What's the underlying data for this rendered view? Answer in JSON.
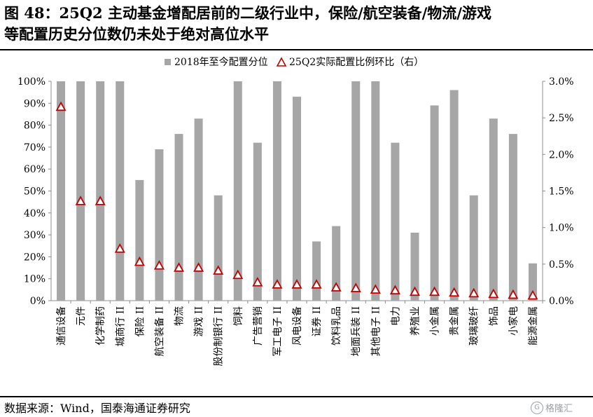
{
  "title": {
    "line1": "图 48：25Q2 主动基金增配居前的二级行业中，保险/航空装备/物流/游戏",
    "line2": "等配置历史分位数仍未处于绝对高位水平"
  },
  "source": "数据来源：Wind，国泰海通证券研究",
  "watermark": "格隆汇",
  "colors": {
    "bar": "#a6a6a6",
    "marker_stroke": "#c00000",
    "marker_fill": "#ffffff",
    "axis": "#8c8c8c"
  },
  "chart_data": {
    "type": "bar",
    "categories": [
      "通信设备",
      "元件",
      "化学制药",
      "城商行 II",
      "保险 II",
      "航空装备 II",
      "物流",
      "游戏 II",
      "股份制银行 II",
      "饲料",
      "广告营销",
      "军工电子 II",
      "风电设备",
      "证券 II",
      "饮料乳品",
      "地面兵装 II",
      "其他电子 II",
      "电力",
      "养殖业",
      "小金属",
      "贵金属",
      "玻璃玻纤",
      "饰品",
      "小家电",
      "能源金属"
    ],
    "series": [
      {
        "name": "2018年至今配置分位",
        "type": "bar",
        "axis": "left",
        "values": [
          100,
          100,
          100,
          100,
          55,
          69,
          76,
          83,
          48,
          100,
          72,
          100,
          93,
          27,
          34,
          100,
          100,
          72,
          31,
          89,
          96,
          48,
          83,
          76,
          17
        ]
      },
      {
        "name": "25Q2实际配置比例环比（右）",
        "type": "scatter",
        "axis": "right",
        "values": [
          2.65,
          1.36,
          1.36,
          0.71,
          0.53,
          0.48,
          0.45,
          0.45,
          0.41,
          0.35,
          0.25,
          0.22,
          0.22,
          0.22,
          0.18,
          0.17,
          0.15,
          0.14,
          0.12,
          0.12,
          0.11,
          0.1,
          0.09,
          0.08,
          0.07
        ]
      }
    ],
    "y_left": {
      "ylim": [
        0,
        100
      ],
      "ticks": [
        "0%",
        "10%",
        "20%",
        "30%",
        "40%",
        "50%",
        "60%",
        "70%",
        "80%",
        "90%",
        "100%"
      ]
    },
    "y_right": {
      "ylim": [
        0,
        3.0
      ],
      "ticks": [
        "0.0%",
        "0.5%",
        "1.0%",
        "1.5%",
        "2.0%",
        "2.5%",
        "3.0%"
      ]
    },
    "legend_position": "top-center",
    "grid": false
  }
}
